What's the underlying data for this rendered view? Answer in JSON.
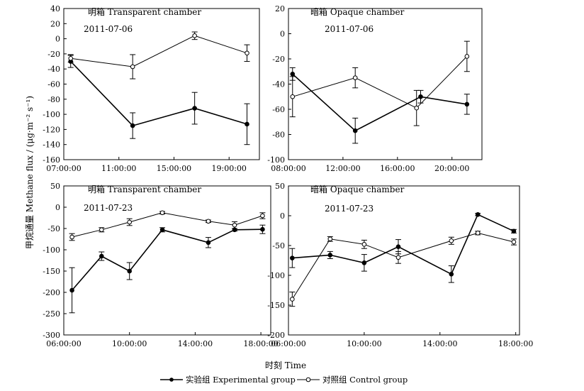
{
  "figure": {
    "ylabel": "甲烷通量 Methane flux / (μg·m⁻² s⁻¹)",
    "xlabel": "时刻 Time",
    "legend": {
      "experimental": "实验组 Experimental group",
      "control": "对照组 Control group"
    }
  },
  "chart_data": [
    {
      "type": "line",
      "title": "明箱 Transparent chamber",
      "date": "2011-07-06",
      "xlim": [
        7,
        21.2
      ],
      "xticks": [
        7,
        11,
        15,
        19
      ],
      "xticklabels": [
        "07:00:00",
        "11:00:00",
        "15:00:00",
        "19:00:00"
      ],
      "ylim": [
        -160,
        40
      ],
      "yticks": [
        -160,
        -140,
        -120,
        -100,
        -80,
        -60,
        -40,
        -20,
        0,
        20,
        40
      ],
      "series": [
        {
          "name": "实验组 Experimental group",
          "marker": "filled",
          "x": [
            7.5,
            12.0,
            16.5,
            20.3
          ],
          "y": [
            -30,
            -115,
            -92,
            -113
          ],
          "err": [
            8,
            17,
            21,
            27
          ]
        },
        {
          "name": "对照组 Control group",
          "marker": "open",
          "x": [
            7.5,
            12.0,
            16.5,
            20.3
          ],
          "y": [
            -26,
            -37,
            4,
            -19
          ],
          "err": [
            5,
            16,
            5,
            11
          ]
        }
      ]
    },
    {
      "type": "line",
      "title": "暗箱 Opaque chamber",
      "date": "2011-07-06",
      "xlim": [
        8,
        22.2
      ],
      "xticks": [
        8,
        12,
        16,
        20
      ],
      "xticklabels": [
        "08:00:00",
        "12:00:00",
        "16:00:00",
        "20:00:00"
      ],
      "ylim": [
        -100,
        20
      ],
      "yticks": [
        -100,
        -80,
        -60,
        -40,
        -20,
        0,
        20
      ],
      "series": [
        {
          "name": "实验组 Experimental group",
          "marker": "filled",
          "x": [
            8.3,
            12.9,
            17.7,
            21.1
          ],
          "y": [
            -32,
            -77,
            -50,
            -56
          ],
          "err": [
            5,
            10,
            5,
            8
          ]
        },
        {
          "name": "对照组 Control group",
          "marker": "open",
          "x": [
            8.3,
            12.9,
            17.4,
            21.1
          ],
          "y": [
            -50,
            -35,
            -59,
            -18
          ],
          "err": [
            16,
            8,
            14,
            12
          ]
        }
      ]
    },
    {
      "type": "line",
      "title": "明箱 Transparent chamber",
      "date": "2011-07-23",
      "xlim": [
        6,
        18.6
      ],
      "xticks": [
        6,
        10,
        14,
        18
      ],
      "xticklabels": [
        "06:00:00",
        "10:00:00",
        "14:00:00",
        "18:00:00"
      ],
      "ylim": [
        -300,
        50
      ],
      "yticks": [
        -300,
        -250,
        -200,
        -150,
        -100,
        -50,
        0,
        50
      ],
      "series": [
        {
          "name": "实验组 Experimental group",
          "marker": "filled",
          "x": [
            6.5,
            8.3,
            10.0,
            12.0,
            14.8,
            16.4,
            18.1
          ],
          "y": [
            -195,
            -115,
            -150,
            -53,
            -83,
            -53,
            -52
          ],
          "err": [
            53,
            10,
            20,
            5,
            12,
            3,
            10
          ]
        },
        {
          "name": "对照组 Control group",
          "marker": "open",
          "x": [
            6.5,
            8.3,
            10.0,
            12.0,
            14.8,
            16.4,
            18.1
          ],
          "y": [
            -70,
            -53,
            -35,
            -13,
            -33,
            -42,
            -20
          ],
          "err": [
            8,
            5,
            8,
            3,
            3,
            8,
            7
          ]
        }
      ]
    },
    {
      "type": "line",
      "title": "暗箱 Opaque chamber",
      "date": "2011-07-23",
      "xlim": [
        6,
        18.2
      ],
      "xticks": [
        6,
        10,
        14,
        18
      ],
      "xticklabels": [
        "06:00:00",
        "10:00:00",
        "14:00:00",
        "18:00:00"
      ],
      "ylim": [
        -200,
        50
      ],
      "yticks": [
        -200,
        -150,
        -100,
        -50,
        0,
        50
      ],
      "series": [
        {
          "name": "实验组 Experimental group",
          "marker": "filled",
          "x": [
            6.2,
            8.2,
            10.0,
            11.8,
            14.6,
            16.0,
            17.9
          ],
          "y": [
            -71,
            -66,
            -79,
            -52,
            -98,
            2,
            -26
          ],
          "err": [
            16,
            6,
            14,
            12,
            14,
            2,
            3
          ]
        },
        {
          "name": "对照组 Control group",
          "marker": "open",
          "x": [
            6.2,
            8.2,
            10.0,
            11.8,
            14.6,
            16.0,
            17.9
          ],
          "y": [
            -140,
            -39,
            -48,
            -70,
            -42,
            -29,
            -44
          ],
          "err": [
            12,
            4,
            7,
            10,
            6,
            3,
            5
          ]
        }
      ]
    }
  ]
}
